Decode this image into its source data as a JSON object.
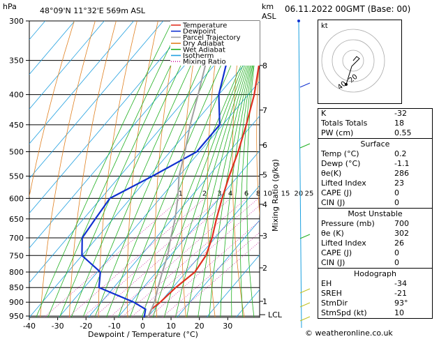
{
  "header": {
    "location": "48°09'N  11°32'E  569m  ASL",
    "datetime": "06.11.2022  00GMT  (Base: 00)",
    "hpa_label": "hPa",
    "km_label": "km",
    "asl_label": "ASL"
  },
  "axes": {
    "xlabel": "Dewpoint / Temperature (°C)",
    "ylabel_right": "Mixing Ratio (g/kg)",
    "pressure_ticks": [
      "300",
      "350",
      "400",
      "450",
      "500",
      "550",
      "600",
      "650",
      "700",
      "750",
      "800",
      "850",
      "900",
      "950"
    ],
    "temp_ticks": [
      "-40",
      "-30",
      "-20",
      "-10",
      "0",
      "10",
      "20",
      "30"
    ],
    "km_ticks": [
      "8",
      "7",
      "6",
      "5",
      "4",
      "3",
      "2",
      "1"
    ],
    "lcl_label": "LCL",
    "mixing_ratio_labels": [
      "1",
      "2",
      "3",
      "4",
      "6",
      "8",
      "10",
      "15",
      "20",
      "25"
    ]
  },
  "legend": {
    "items": [
      {
        "label": "Temperature",
        "color": "#e03020",
        "style": "solid"
      },
      {
        "label": "Dewpoint",
        "color": "#1030d0",
        "style": "solid"
      },
      {
        "label": "Parcel Trajectory",
        "color": "#a0a0a0",
        "style": "solid"
      },
      {
        "label": "Dry Adiabat",
        "color": "#e08020",
        "style": "solid"
      },
      {
        "label": "Wet Adiabat",
        "color": "#20b020",
        "style": "solid"
      },
      {
        "label": "Isotherm",
        "color": "#20a0e0",
        "style": "solid"
      },
      {
        "label": "Mixing Ratio",
        "color": "#d020a0",
        "style": "dotted"
      }
    ]
  },
  "chart_data": {
    "type": "line",
    "title": "",
    "xlabel": "Dewpoint / Temperature (°C)",
    "ylabel": "hPa",
    "xlim": [
      -40,
      38
    ],
    "ylim": [
      955,
      300
    ],
    "y_scale": "log",
    "series": [
      {
        "name": "Temperature",
        "color": "#e03020",
        "points": [
          [
            300,
            -44
          ],
          [
            350,
            -36
          ],
          [
            400,
            -28
          ],
          [
            450,
            -22
          ],
          [
            500,
            -17
          ],
          [
            550,
            -13
          ],
          [
            600,
            -9
          ],
          [
            650,
            -5
          ],
          [
            700,
            -1
          ],
          [
            750,
            2
          ],
          [
            800,
            3
          ],
          [
            850,
            1
          ],
          [
            900,
            0
          ],
          [
            925,
            -1
          ],
          [
            955,
            0.2
          ]
        ]
      },
      {
        "name": "Dewpoint",
        "color": "#1030d0",
        "points": [
          [
            300,
            -53
          ],
          [
            350,
            -47
          ],
          [
            400,
            -40
          ],
          [
            450,
            -31
          ],
          [
            500,
            -31
          ],
          [
            550,
            -39
          ],
          [
            600,
            -47
          ],
          [
            650,
            -46
          ],
          [
            700,
            -45
          ],
          [
            750,
            -40
          ],
          [
            800,
            -29
          ],
          [
            850,
            -25
          ],
          [
            900,
            -9
          ],
          [
            925,
            -3
          ],
          [
            955,
            -1.1
          ]
        ]
      },
      {
        "name": "Parcel Trajectory",
        "color": "#a0a0a0",
        "points": [
          [
            300,
            -60
          ],
          [
            350,
            -54
          ],
          [
            400,
            -47
          ],
          [
            450,
            -41
          ],
          [
            500,
            -35
          ],
          [
            550,
            -30
          ],
          [
            600,
            -24
          ],
          [
            650,
            -19
          ],
          [
            700,
            -15
          ],
          [
            750,
            -11
          ],
          [
            800,
            -8
          ],
          [
            850,
            -5
          ],
          [
            900,
            -2
          ],
          [
            955,
            0.2
          ]
        ]
      }
    ]
  },
  "indices": {
    "rows": [
      {
        "key": "K",
        "value": "-32"
      },
      {
        "key": "Totals Totals",
        "value": "18"
      },
      {
        "key": "PW (cm)",
        "value": "0.55"
      }
    ],
    "surface": {
      "title": "Surface",
      "rows": [
        {
          "key": "Temp (°C)",
          "value": "0.2"
        },
        {
          "key": "Dewp (°C)",
          "value": "-1.1"
        },
        {
          "key": "θe(K)",
          "value": "286"
        },
        {
          "key": "Lifted Index",
          "value": "23"
        },
        {
          "key": "CAPE (J)",
          "value": "0"
        },
        {
          "key": "CIN (J)",
          "value": "0"
        }
      ]
    },
    "most_unstable": {
      "title": "Most Unstable",
      "rows": [
        {
          "key": "Pressure (mb)",
          "value": "700"
        },
        {
          "key": "θe (K)",
          "value": "302"
        },
        {
          "key": "Lifted Index",
          "value": "26"
        },
        {
          "key": "CAPE (J)",
          "value": "0"
        },
        {
          "key": "CIN (J)",
          "value": "0"
        }
      ]
    },
    "hodograph": {
      "title": "Hodograph",
      "rows": [
        {
          "key": "EH",
          "value": "-34"
        },
        {
          "key": "SREH",
          "value": "-21"
        },
        {
          "key": "StmDir",
          "value": "93°"
        },
        {
          "key": "StmSpd (kt)",
          "value": "10"
        }
      ]
    }
  },
  "hodo": {
    "unit_label": "kt",
    "ring_labels": [
      "20",
      "40"
    ]
  },
  "credit": "© weatheronline.co.uk"
}
